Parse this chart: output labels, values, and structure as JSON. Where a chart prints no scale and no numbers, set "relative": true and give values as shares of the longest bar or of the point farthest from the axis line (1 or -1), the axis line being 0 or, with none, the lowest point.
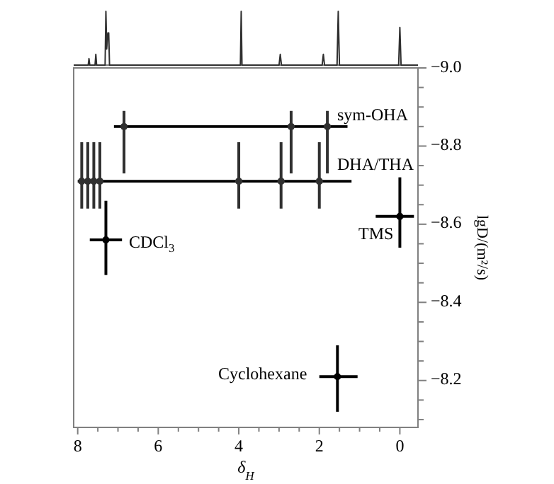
{
  "chart_data": [
    {
      "type": "line",
      "relative": true,
      "xlim": [
        8.1,
        -0.45
      ],
      "series": [
        {
          "color": "#303030",
          "x": [
            8.1,
            7.74,
            7.72,
            7.7,
            7.57,
            7.55,
            7.53,
            7.32,
            7.3,
            7.28,
            7.25,
            7.23,
            7.21,
            7.1,
            4.0,
            3.96,
            3.94,
            3.92,
            3.0,
            2.97,
            2.94,
            1.93,
            1.9,
            1.87,
            1.56,
            1.53,
            1.5,
            0.03,
            0.0,
            -0.03,
            -0.45
          ],
          "values": [
            0,
            0,
            0.12,
            0,
            0,
            0.2,
            0,
            0,
            1.0,
            0.3,
            0.6,
            0.6,
            0,
            0,
            0,
            0,
            1.0,
            0,
            0,
            0.2,
            0,
            0,
            0.2,
            0,
            0,
            1.0,
            0,
            0,
            0.7,
            0,
            0
          ]
        }
      ]
    },
    {
      "type": "scatter",
      "xlabel": "δ$_{H}$",
      "ylabel": "lgD/(m²/s)",
      "xlim": [
        8.1,
        -0.45
      ],
      "ylim": [
        -8.08,
        -9.0
      ],
      "xticks": [
        8,
        {
          "value": 7.5,
          "label": null
        },
        6,
        {
          "value": 6.5,
          "label": null
        },
        {
          "value": 7,
          "label": null
        },
        {
          "value": 5.5,
          "label": null
        },
        {
          "value": 5,
          "label": null
        },
        {
          "value": 4.5,
          "label": null
        },
        4,
        {
          "value": 3.5,
          "label": null
        },
        {
          "value": 3,
          "label": null
        },
        {
          "value": 2.5,
          "label": null
        },
        2,
        {
          "value": 1.5,
          "label": null
        },
        {
          "value": 1,
          "label": null
        },
        {
          "value": 0.5,
          "label": null
        },
        0
      ],
      "yticks": [
        {
          "value": -9.0,
          "label": "−9.0"
        },
        {
          "value": -8.95,
          "label": null
        },
        {
          "value": -8.9,
          "label": null
        },
        {
          "value": -8.85,
          "label": null
        },
        {
          "value": -8.8,
          "label": "−8.8"
        },
        {
          "value": -8.75,
          "label": null
        },
        {
          "value": -8.7,
          "label": null
        },
        {
          "value": -8.65,
          "label": null
        },
        {
          "value": -8.6,
          "label": "−8.6"
        },
        {
          "value": -8.55,
          "label": null
        },
        {
          "value": -8.5,
          "label": null
        },
        {
          "value": -8.45,
          "label": null
        },
        {
          "value": -8.4,
          "label": "−8.4"
        },
        {
          "value": -8.35,
          "label": null
        },
        {
          "value": -8.3,
          "label": null
        },
        {
          "value": -8.25,
          "label": null
        },
        {
          "value": -8.2,
          "label": "−8.2"
        },
        {
          "value": -8.15,
          "label": null
        },
        {
          "value": -8.1,
          "label": null
        }
      ],
      "series": [
        {
          "type": "line",
          "color": "#000000",
          "x": [
            7.1,
            1.3
          ],
          "values": [
            -8.85,
            -8.85
          ]
        },
        {
          "type": "line",
          "color": "#000000",
          "x": [
            8.0,
            1.2
          ],
          "values": [
            -8.71,
            -8.71
          ]
        },
        {
          "color": "#303030",
          "marker": "circle",
          "x": [
            7.9,
            7.75,
            7.6,
            7.45,
            4.0,
            2.95,
            2.0,
            6.85,
            2.7,
            1.8
          ],
          "values": [
            -8.71,
            -8.71,
            -8.71,
            -8.71,
            -8.71,
            -8.71,
            -8.71,
            -8.85,
            -8.85,
            -8.85
          ],
          "errors": [
            [
              -8.81,
              -8.64
            ],
            [
              -8.81,
              -8.64
            ],
            [
              -8.81,
              -8.64
            ],
            [
              -8.81,
              -8.64
            ],
            [
              -8.81,
              -8.64
            ],
            [
              -8.81,
              -8.64
            ],
            [
              -8.81,
              -8.64
            ],
            [
              -8.89,
              -8.73
            ],
            [
              -8.89,
              -8.73
            ],
            [
              -8.89,
              -8.73
            ]
          ]
        },
        {
          "color": "#000000",
          "marker": "circle",
          "x": [
            7.3,
            0.0,
            1.55
          ],
          "values": [
            -8.56,
            -8.62,
            -8.21
          ],
          "errors": [
            [
              -8.66,
              -8.47
            ],
            [
              -8.72,
              -8.54
            ],
            [
              -8.29,
              -8.12
            ]
          ],
          "xerrors": [
            [
              6.9,
              7.7
            ],
            [
              -0.35,
              0.6
            ],
            [
              1.05,
              2.0
            ]
          ]
        }
      ],
      "annotations": [
        "sym-OHA",
        "DHA/THA",
        "CDCl$_{3}$",
        "TMS",
        "Cyclohexane"
      ]
    }
  ]
}
